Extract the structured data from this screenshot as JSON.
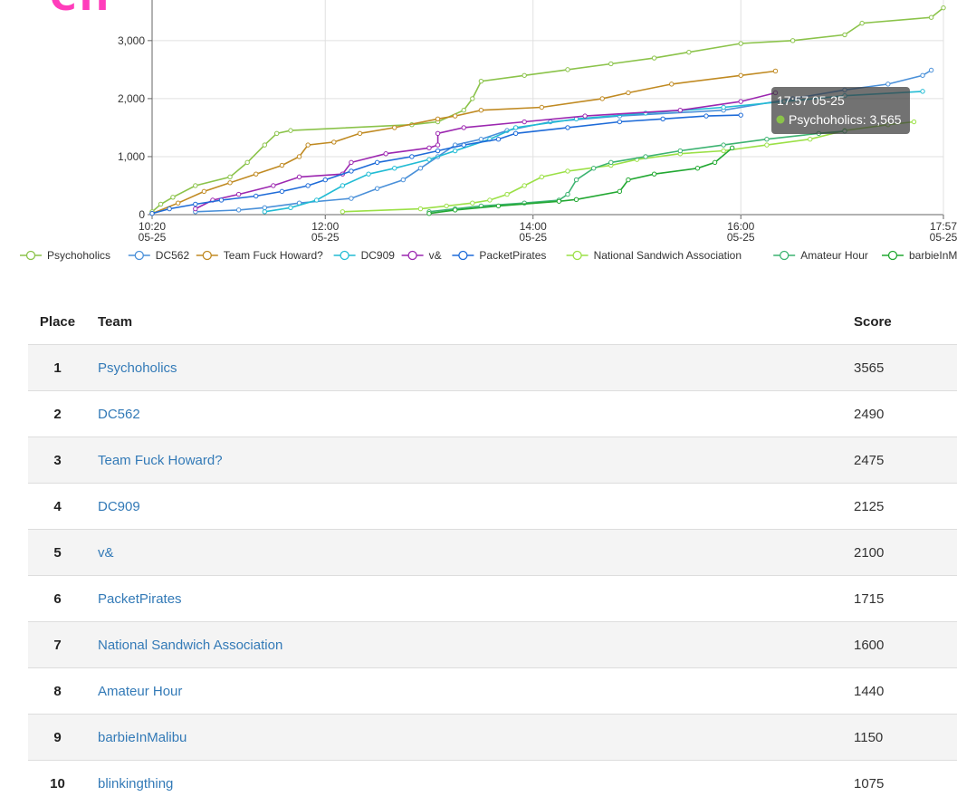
{
  "chart_data": {
    "type": "line",
    "y_ticks": [
      "0",
      "1,000",
      "2,000",
      "3,000"
    ],
    "ylim": [
      0,
      3700
    ],
    "x_ticks": [
      {
        "time": "10:20",
        "date": "05-25",
        "t": 0
      },
      {
        "time": "12:00",
        "date": "05-25",
        "t": 100
      },
      {
        "time": "14:00",
        "date": "05-25",
        "t": 220
      },
      {
        "time": "16:00",
        "date": "05-25",
        "t": 340
      },
      {
        "time": "17:57",
        "date": "05-25",
        "t": 457
      }
    ],
    "xlim": [
      0,
      457
    ],
    "grid": true,
    "legend_position": "bottom",
    "series": [
      {
        "name": "Psychoholics",
        "color": "#8bc34a",
        "points": [
          [
            0,
            50
          ],
          [
            5,
            180
          ],
          [
            12,
            300
          ],
          [
            25,
            500
          ],
          [
            45,
            650
          ],
          [
            55,
            900
          ],
          [
            65,
            1200
          ],
          [
            72,
            1400
          ],
          [
            80,
            1450
          ],
          [
            150,
            1550
          ],
          [
            165,
            1600
          ],
          [
            180,
            1800
          ],
          [
            185,
            2000
          ],
          [
            190,
            2300
          ],
          [
            215,
            2400
          ],
          [
            240,
            2500
          ],
          [
            265,
            2600
          ],
          [
            290,
            2700
          ],
          [
            310,
            2800
          ],
          [
            340,
            2950
          ],
          [
            370,
            3000
          ],
          [
            400,
            3100
          ],
          [
            410,
            3300
          ],
          [
            450,
            3400
          ],
          [
            457,
            3565
          ]
        ]
      },
      {
        "name": "DC562",
        "color": "#4a90d9",
        "points": [
          [
            25,
            50
          ],
          [
            50,
            80
          ],
          [
            65,
            120
          ],
          [
            85,
            200
          ],
          [
            115,
            280
          ],
          [
            130,
            450
          ],
          [
            145,
            600
          ],
          [
            155,
            800
          ],
          [
            165,
            1000
          ],
          [
            175,
            1200
          ],
          [
            190,
            1300
          ],
          [
            205,
            1450
          ],
          [
            230,
            1600
          ],
          [
            270,
            1700
          ],
          [
            330,
            1800
          ],
          [
            370,
            2000
          ],
          [
            400,
            2150
          ],
          [
            425,
            2250
          ],
          [
            445,
            2400
          ],
          [
            450,
            2490
          ]
        ]
      },
      {
        "name": "Team Fuck Howard?",
        "color": "#c08a22",
        "points": [
          [
            0,
            20
          ],
          [
            15,
            200
          ],
          [
            30,
            400
          ],
          [
            45,
            550
          ],
          [
            60,
            700
          ],
          [
            75,
            850
          ],
          [
            85,
            1000
          ],
          [
            90,
            1200
          ],
          [
            105,
            1250
          ],
          [
            120,
            1400
          ],
          [
            140,
            1500
          ],
          [
            165,
            1650
          ],
          [
            175,
            1700
          ],
          [
            190,
            1800
          ],
          [
            225,
            1850
          ],
          [
            260,
            2000
          ],
          [
            275,
            2100
          ],
          [
            300,
            2250
          ],
          [
            340,
            2400
          ],
          [
            360,
            2475
          ]
        ]
      },
      {
        "name": "DC909",
        "color": "#22bcd4",
        "points": [
          [
            65,
            50
          ],
          [
            80,
            120
          ],
          [
            95,
            250
          ],
          [
            110,
            500
          ],
          [
            125,
            700
          ],
          [
            140,
            800
          ],
          [
            160,
            950
          ],
          [
            175,
            1100
          ],
          [
            195,
            1300
          ],
          [
            210,
            1500
          ],
          [
            245,
            1650
          ],
          [
            285,
            1750
          ],
          [
            330,
            1850
          ],
          [
            365,
            1950
          ],
          [
            400,
            2050
          ],
          [
            445,
            2125
          ]
        ]
      },
      {
        "name": "v&",
        "color": "#9c27b0",
        "points": [
          [
            25,
            100
          ],
          [
            35,
            250
          ],
          [
            50,
            350
          ],
          [
            70,
            500
          ],
          [
            85,
            650
          ],
          [
            110,
            700
          ],
          [
            115,
            900
          ],
          [
            135,
            1050
          ],
          [
            160,
            1150
          ],
          [
            165,
            1200
          ],
          [
            165,
            1400
          ],
          [
            180,
            1500
          ],
          [
            215,
            1600
          ],
          [
            250,
            1700
          ],
          [
            305,
            1800
          ],
          [
            340,
            1950
          ],
          [
            360,
            2100
          ]
        ]
      },
      {
        "name": "PacketPirates",
        "color": "#1e6bd8",
        "points": [
          [
            0,
            20
          ],
          [
            10,
            100
          ],
          [
            25,
            180
          ],
          [
            40,
            250
          ],
          [
            60,
            320
          ],
          [
            75,
            400
          ],
          [
            90,
            500
          ],
          [
            100,
            600
          ],
          [
            115,
            750
          ],
          [
            130,
            900
          ],
          [
            150,
            1000
          ],
          [
            165,
            1100
          ],
          [
            180,
            1200
          ],
          [
            200,
            1300
          ],
          [
            210,
            1400
          ],
          [
            240,
            1500
          ],
          [
            270,
            1600
          ],
          [
            295,
            1650
          ],
          [
            320,
            1700
          ],
          [
            340,
            1715
          ]
        ]
      },
      {
        "name": "National Sandwich Association",
        "color": "#9be046",
        "points": [
          [
            110,
            50
          ],
          [
            155,
            100
          ],
          [
            170,
            150
          ],
          [
            185,
            200
          ],
          [
            195,
            250
          ],
          [
            205,
            350
          ],
          [
            215,
            500
          ],
          [
            225,
            650
          ],
          [
            240,
            750
          ],
          [
            265,
            850
          ],
          [
            280,
            950
          ],
          [
            305,
            1050
          ],
          [
            330,
            1100
          ],
          [
            355,
            1200
          ],
          [
            380,
            1300
          ],
          [
            400,
            1450
          ],
          [
            425,
            1550
          ],
          [
            440,
            1600
          ]
        ]
      },
      {
        "name": "Amateur Hour",
        "color": "#3cb371",
        "points": [
          [
            160,
            50
          ],
          [
            175,
            100
          ],
          [
            190,
            150
          ],
          [
            215,
            200
          ],
          [
            235,
            250
          ],
          [
            240,
            350
          ],
          [
            245,
            600
          ],
          [
            255,
            800
          ],
          [
            265,
            900
          ],
          [
            285,
            1000
          ],
          [
            305,
            1100
          ],
          [
            330,
            1200
          ],
          [
            355,
            1300
          ],
          [
            385,
            1400
          ],
          [
            400,
            1440
          ]
        ]
      },
      {
        "name": "barbieInMalibu",
        "color": "#22a832",
        "points": [
          [
            160,
            20
          ],
          [
            175,
            80
          ],
          [
            200,
            150
          ],
          [
            235,
            230
          ],
          [
            245,
            260
          ],
          [
            270,
            400
          ],
          [
            275,
            600
          ],
          [
            290,
            700
          ],
          [
            315,
            800
          ],
          [
            325,
            900
          ],
          [
            335,
            1150
          ]
        ]
      }
    ],
    "tooltip": {
      "title": "17:57 05-25",
      "series": "Psychoholics",
      "value": "3,565",
      "dot_color": "#8bc34a"
    }
  },
  "scoreboard": {
    "headers": {
      "place": "Place",
      "team": "Team",
      "score": "Score"
    },
    "rows": [
      {
        "place": "1",
        "team": "Psychoholics",
        "score": "3565"
      },
      {
        "place": "2",
        "team": "DC562",
        "score": "2490"
      },
      {
        "place": "3",
        "team": "Team Fuck Howard?",
        "score": "2475"
      },
      {
        "place": "4",
        "team": "DC909",
        "score": "2125"
      },
      {
        "place": "5",
        "team": "v&",
        "score": "2100"
      },
      {
        "place": "6",
        "team": "PacketPirates",
        "score": "1715"
      },
      {
        "place": "7",
        "team": "National Sandwich Association",
        "score": "1600"
      },
      {
        "place": "8",
        "team": "Amateur Hour",
        "score": "1440"
      },
      {
        "place": "9",
        "team": "barbieInMalibu",
        "score": "1150"
      },
      {
        "place": "10",
        "team": "blinkingthing",
        "score": "1075"
      }
    ]
  }
}
